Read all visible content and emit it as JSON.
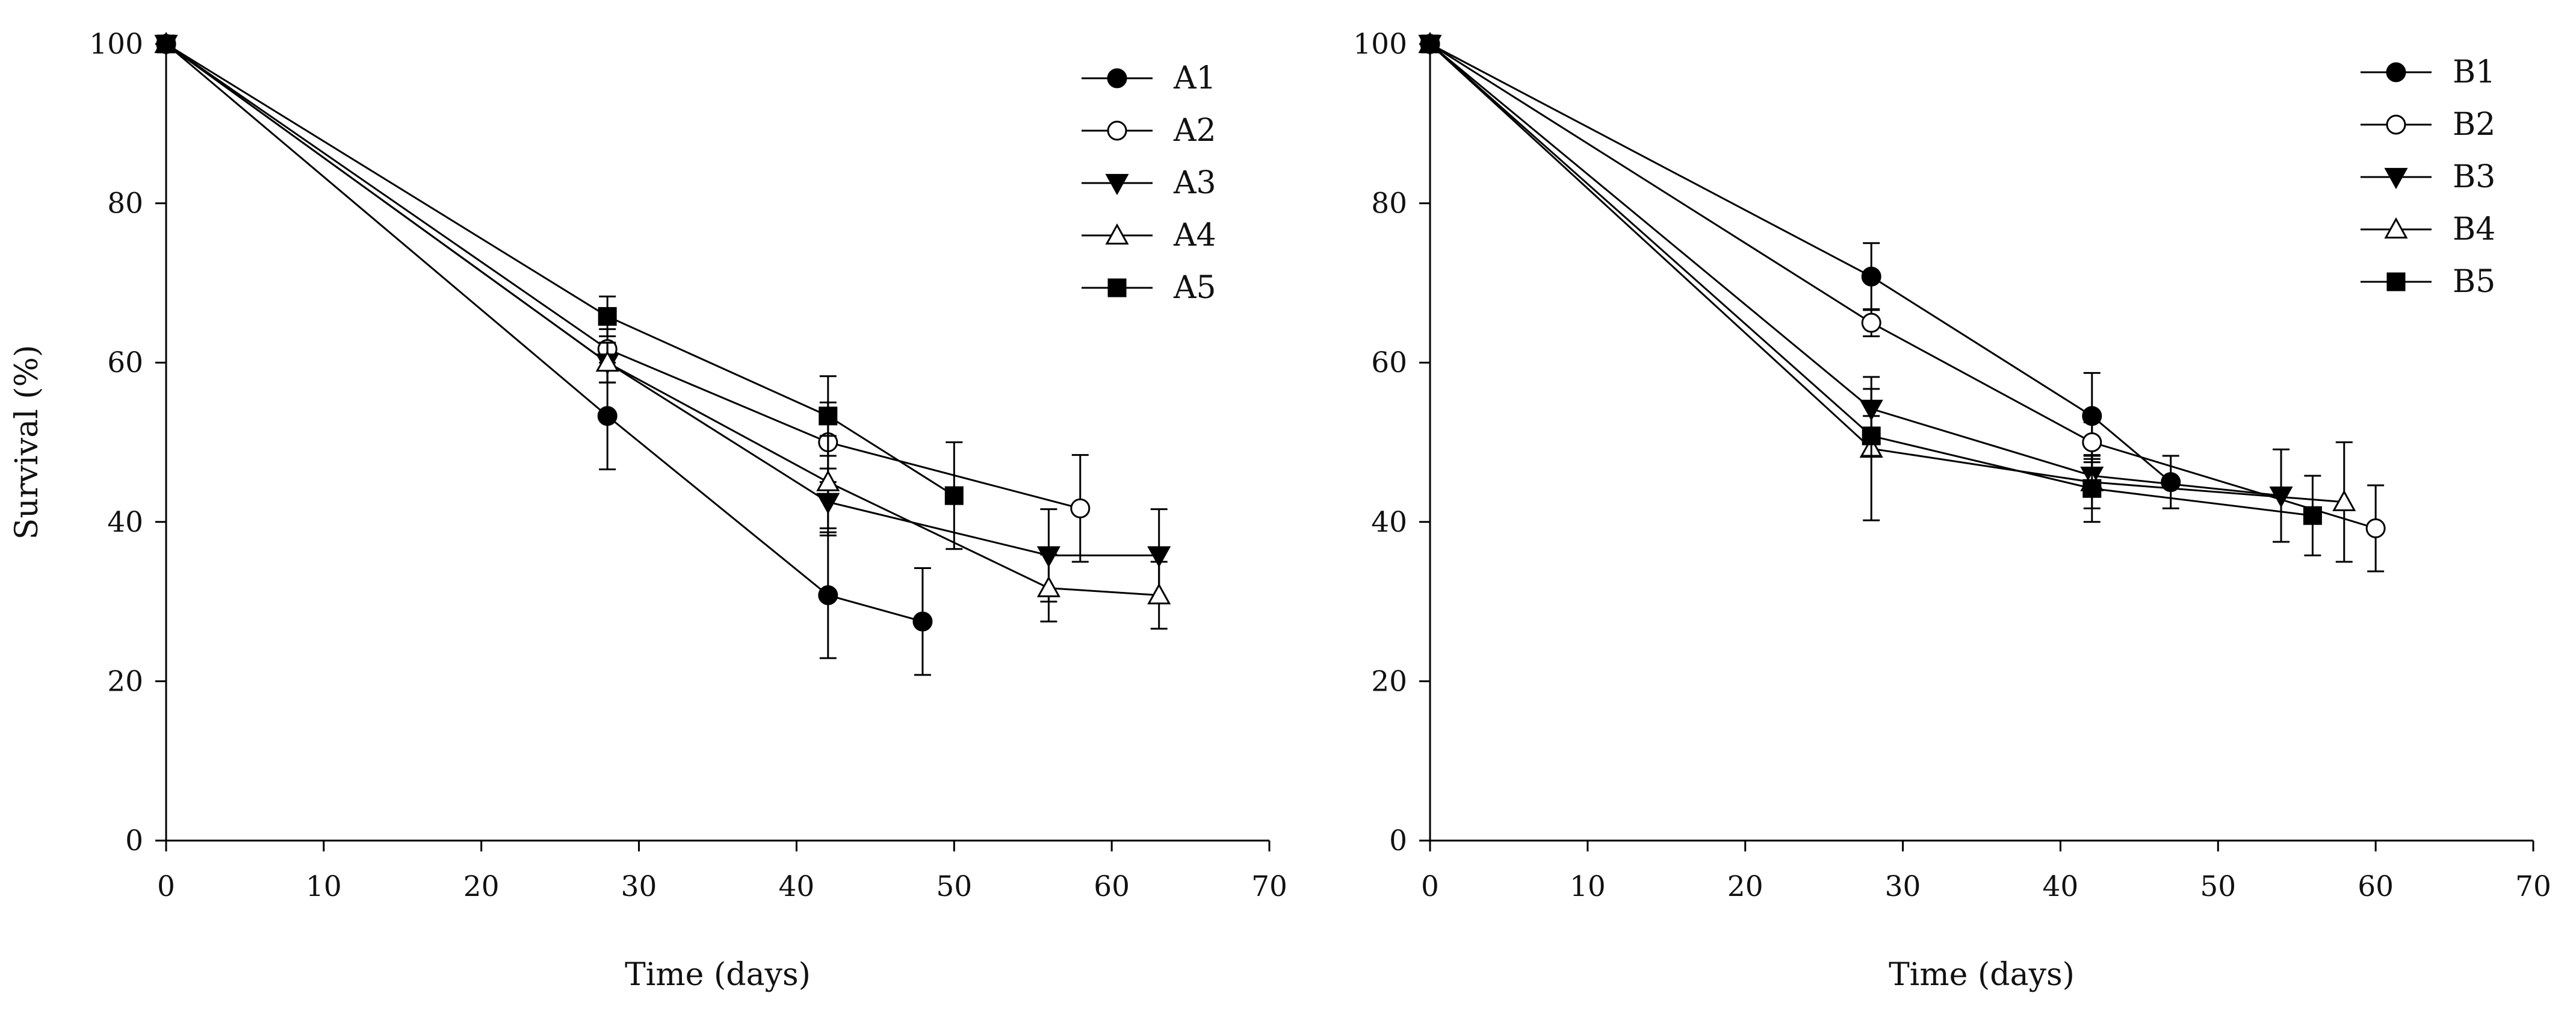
{
  "chart_data": [
    {
      "type": "line",
      "panel": "left",
      "title": "",
      "xlabel": "Time (days)",
      "ylabel": "Survival (%)",
      "xlim": [
        0,
        70
      ],
      "ylim": [
        0,
        100
      ],
      "xticks": [
        0,
        10,
        20,
        30,
        40,
        50,
        60,
        70
      ],
      "yticks": [
        0,
        20,
        40,
        60,
        80,
        100
      ],
      "legend_position": "top-right",
      "grid": false,
      "series": [
        {
          "name": "A1",
          "marker": "circle-filled",
          "points": [
            {
              "x": 0,
              "y": 100
            },
            {
              "x": 28,
              "y": 53.3,
              "err": 6.7
            },
            {
              "x": 42,
              "y": 30.8,
              "err": 7.9
            },
            {
              "x": 48,
              "y": 27.5,
              "err": 6.7
            }
          ]
        },
        {
          "name": "A2",
          "marker": "circle-open",
          "points": [
            {
              "x": 0,
              "y": 100
            },
            {
              "x": 28,
              "y": 61.7,
              "err": 2.5
            },
            {
              "x": 42,
              "y": 50,
              "err": 5
            },
            {
              "x": 58,
              "y": 41.7,
              "err": 6.7
            }
          ]
        },
        {
          "name": "A3",
          "marker": "triangle-down-filled",
          "points": [
            {
              "x": 0,
              "y": 100
            },
            {
              "x": 28,
              "y": 60,
              "err": 2.5
            },
            {
              "x": 42,
              "y": 42.5,
              "err": 4.2
            },
            {
              "x": 56,
              "y": 35.8,
              "err": 5.8
            },
            {
              "x": 63,
              "y": 35.8,
              "err": 5.8
            }
          ]
        },
        {
          "name": "A4",
          "marker": "triangle-up-open",
          "points": [
            {
              "x": 0,
              "y": 100
            },
            {
              "x": 28,
              "y": 60,
              "err": 2.5
            },
            {
              "x": 42,
              "y": 45,
              "err": 5.8
            },
            {
              "x": 56,
              "y": 31.7,
              "err": 4.2
            },
            {
              "x": 63,
              "y": 30.8,
              "err": 4.2
            }
          ]
        },
        {
          "name": "A5",
          "marker": "square-filled",
          "points": [
            {
              "x": 0,
              "y": 100
            },
            {
              "x": 28,
              "y": 65.8,
              "err": 2.5
            },
            {
              "x": 42,
              "y": 53.3,
              "err": 5
            },
            {
              "x": 50,
              "y": 43.3,
              "err": 6.7
            }
          ]
        }
      ]
    },
    {
      "type": "line",
      "panel": "right",
      "title": "",
      "xlabel": "Time (days)",
      "ylabel": "",
      "xlim": [
        0,
        70
      ],
      "ylim": [
        0,
        100
      ],
      "xticks": [
        0,
        10,
        20,
        30,
        40,
        50,
        60,
        70
      ],
      "yticks": [
        0,
        20,
        40,
        60,
        80,
        100
      ],
      "legend_position": "top-right",
      "grid": false,
      "series": [
        {
          "name": "B1",
          "marker": "circle-filled",
          "points": [
            {
              "x": 0,
              "y": 100
            },
            {
              "x": 28,
              "y": 70.8,
              "err": 4.2
            },
            {
              "x": 42,
              "y": 53.3,
              "err": 5.4
            },
            {
              "x": 47,
              "y": 45,
              "err": 3.3
            }
          ]
        },
        {
          "name": "B2",
          "marker": "circle-open",
          "points": [
            {
              "x": 0,
              "y": 100
            },
            {
              "x": 28,
              "y": 65,
              "err": 1.7
            },
            {
              "x": 42,
              "y": 50,
              "err": 2.5
            },
            {
              "x": 60,
              "y": 39.2,
              "err": 5.4
            }
          ]
        },
        {
          "name": "B3",
          "marker": "triangle-down-filled",
          "points": [
            {
              "x": 0,
              "y": 100
            },
            {
              "x": 28,
              "y": 54.2,
              "err": 2.5
            },
            {
              "x": 42,
              "y": 45.8,
              "err": 2.5
            },
            {
              "x": 54,
              "y": 43.3,
              "err": 5.8
            }
          ]
        },
        {
          "name": "B4",
          "marker": "triangle-up-open",
          "points": [
            {
              "x": 0,
              "y": 100
            },
            {
              "x": 28,
              "y": 49.2,
              "err": 9
            },
            {
              "x": 42,
              "y": 45,
              "err": 3.3
            },
            {
              "x": 58,
              "y": 42.5,
              "err": 7.5
            }
          ]
        },
        {
          "name": "B5",
          "marker": "square-filled",
          "points": [
            {
              "x": 0,
              "y": 100
            },
            {
              "x": 28,
              "y": 50.8,
              "err": 2.5
            },
            {
              "x": 42,
              "y": 44.2,
              "err": 4.2
            },
            {
              "x": 56,
              "y": 40.8,
              "err": 5
            }
          ]
        }
      ]
    }
  ]
}
